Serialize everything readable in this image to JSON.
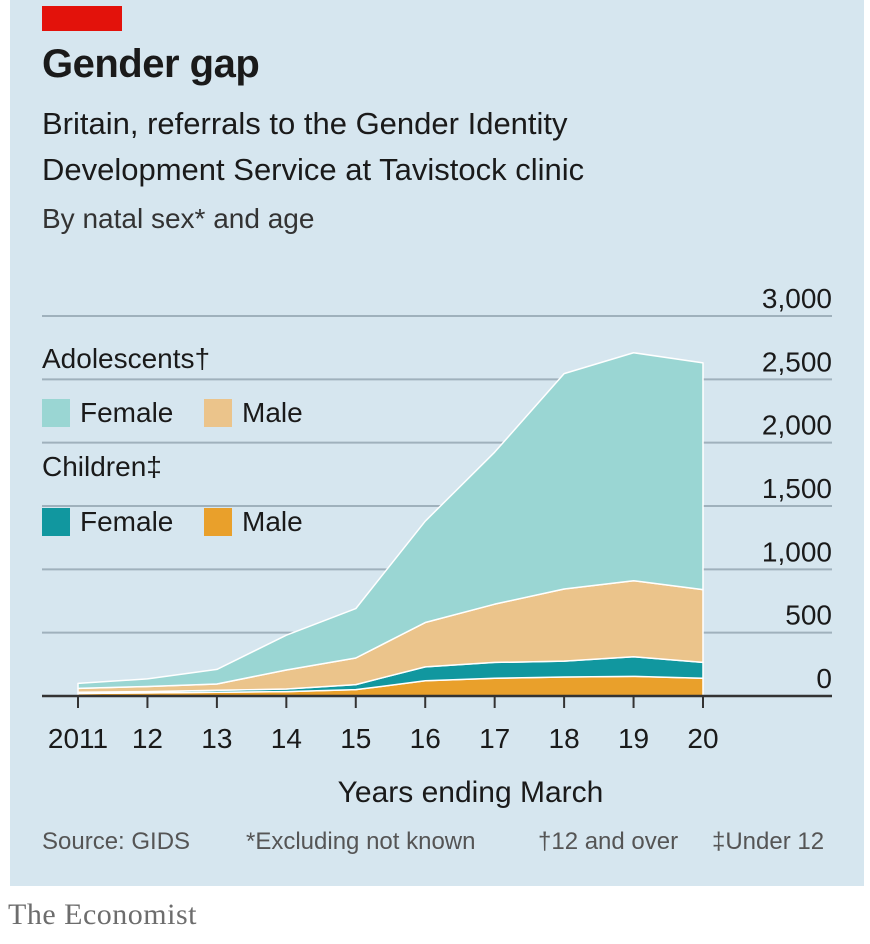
{
  "header": {
    "title": "Gender gap",
    "subtitle_line1": "Britain, referrals to the Gender Identity",
    "subtitle_line2": "Development Service at Tavistock clinic",
    "subtitle_line3": "By natal sex* and age"
  },
  "legend": {
    "group1": "Adolescents†",
    "group2": "Children‡",
    "adolescent_female": "Female",
    "adolescent_male": "Male",
    "children_female": "Female",
    "children_male": "Male"
  },
  "footer": {
    "source": "Source: GIDS",
    "note1": "*Excluding not known",
    "note2": "†12 and over",
    "note3": "‡Under 12"
  },
  "brand": "The Economist",
  "colors": {
    "accent": "#e3120b",
    "panel": "#d6e6ef",
    "adolescent_female": "#9ad6d3",
    "adolescent_male": "#ebc48b",
    "children_female": "#11979f",
    "children_male": "#e9a02b"
  },
  "chart_data": {
    "type": "area",
    "stacked": true,
    "xlabel": "Years ending March",
    "x": [
      2011,
      2012,
      2013,
      2014,
      2015,
      2016,
      2017,
      2018,
      2019,
      2020
    ],
    "x_tick_labels": [
      "2011",
      "12",
      "13",
      "14",
      "15",
      "16",
      "17",
      "18",
      "19",
      "20"
    ],
    "ylim": [
      0,
      3000
    ],
    "y_ticks": [
      0,
      500,
      1000,
      1500,
      2000,
      2500,
      3000
    ],
    "y_tick_labels": [
      "0",
      "500",
      "1,000",
      "1,500",
      "2,000",
      "2,500",
      "3,000"
    ],
    "y_axis_side": "right",
    "grid": true,
    "legend_position": "top-left",
    "series": [
      {
        "name": "Children Male",
        "color_key": "children_male",
        "values": [
          20,
          25,
          30,
          35,
          50,
          120,
          140,
          150,
          155,
          140
        ]
      },
      {
        "name": "Children Female",
        "color_key": "children_female",
        "values": [
          10,
          10,
          15,
          20,
          40,
          110,
          125,
          125,
          155,
          125
        ]
      },
      {
        "name": "Adolescent Male",
        "color_key": "adolescent_male",
        "values": [
          30,
          40,
          50,
          150,
          210,
          350,
          460,
          570,
          600,
          575
        ]
      },
      {
        "name": "Adolescent Female",
        "color_key": "adolescent_female",
        "values": [
          40,
          60,
          115,
          275,
          390,
          800,
          1200,
          1700,
          1800,
          1790
        ]
      }
    ]
  }
}
